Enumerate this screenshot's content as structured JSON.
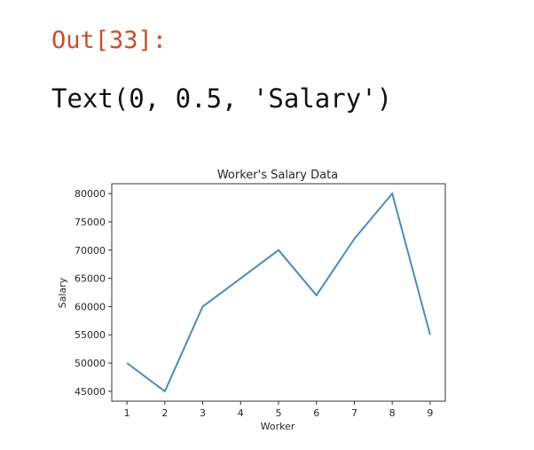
{
  "cell": {
    "prompt": "Out[33]:",
    "output_text": "Text(0, 0.5, 'Salary')"
  },
  "chart_data": {
    "type": "line",
    "title": "Worker's Salary Data",
    "xlabel": "Worker",
    "ylabel": "Salary",
    "x": [
      1,
      2,
      3,
      4,
      5,
      6,
      7,
      8,
      9
    ],
    "y": [
      50000,
      45000,
      60000,
      65000,
      70000,
      62000,
      72000,
      80000,
      55000
    ],
    "xticks": [
      "1",
      "2",
      "3",
      "4",
      "5",
      "6",
      "7",
      "8",
      "9"
    ],
    "yticks": [
      "45000",
      "50000",
      "55000",
      "60000",
      "65000",
      "70000",
      "75000",
      "80000"
    ],
    "xlim": [
      0.6,
      9.4
    ],
    "ylim": [
      43250,
      81750
    ],
    "grid": false,
    "line_color": "#4c8db8"
  }
}
